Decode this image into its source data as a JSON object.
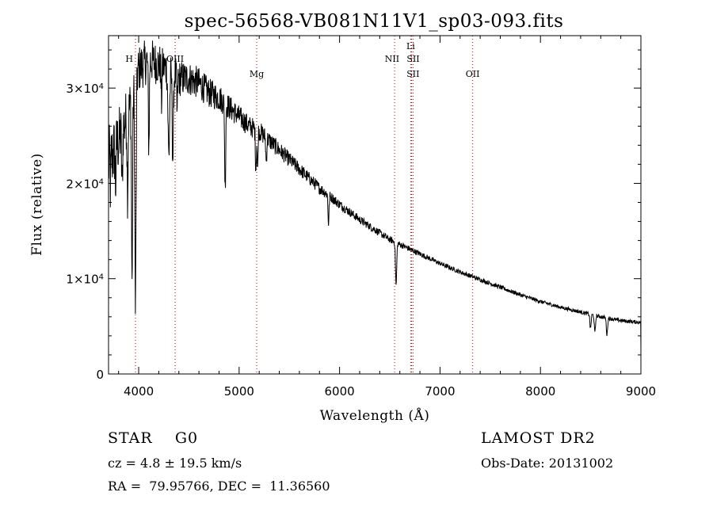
{
  "chart_data": {
    "type": "line",
    "title": "spec-56568-VB081N11V1_sp03-093.fits",
    "xlabel": "Wavelength (Å)",
    "ylabel": "Flux (relative)",
    "xlim": [
      3700,
      9000
    ],
    "ylim": [
      0,
      35500
    ],
    "x_ticks": [
      4000,
      5000,
      6000,
      7000,
      8000,
      9000
    ],
    "y_ticks": [
      {
        "value": 0,
        "mantissa": "0",
        "exp": ""
      },
      {
        "value": 10000,
        "mantissa": "1×10",
        "exp": "4"
      },
      {
        "value": 20000,
        "mantissa": "2×10",
        "exp": "4"
      },
      {
        "value": 30000,
        "mantissa": "3×10",
        "exp": "4"
      }
    ],
    "line_markers": [
      {
        "label": "H",
        "wavelength": 3968,
        "row": 2
      },
      {
        "label": "OIII",
        "wavelength": 4363,
        "row": 1
      },
      {
        "label": "Mg",
        "wavelength": 5175,
        "row": 3
      },
      {
        "label": "NII",
        "wavelength": 6548,
        "row": 2
      },
      {
        "label": "Li",
        "wavelength": 6708,
        "row": 0
      },
      {
        "label": "SII",
        "wavelength": 6717,
        "row": 1
      },
      {
        "label": "SII",
        "wavelength": 6731,
        "row": 3
      },
      {
        "label": "OII",
        "wavelength": 7325,
        "row": 3
      }
    ],
    "continuum": [
      [
        3700,
        22000
      ],
      [
        3800,
        24500
      ],
      [
        3900,
        27500
      ],
      [
        4000,
        32000
      ],
      [
        4100,
        33000
      ],
      [
        4200,
        32500
      ],
      [
        4300,
        32000
      ],
      [
        4400,
        31000
      ],
      [
        4500,
        31000
      ],
      [
        4600,
        30500
      ],
      [
        4700,
        29500
      ],
      [
        4800,
        29000
      ],
      [
        4900,
        28000
      ],
      [
        5000,
        27000
      ],
      [
        5100,
        26000
      ],
      [
        5200,
        25500
      ],
      [
        5300,
        24500
      ],
      [
        5400,
        23500
      ],
      [
        5500,
        22500
      ],
      [
        5600,
        21500
      ],
      [
        5700,
        20500
      ],
      [
        5800,
        19500
      ],
      [
        5900,
        18700
      ],
      [
        6000,
        17800
      ],
      [
        6100,
        17000
      ],
      [
        6200,
        16200
      ],
      [
        6300,
        15500
      ],
      [
        6400,
        14800
      ],
      [
        6500,
        14100
      ],
      [
        6600,
        13600
      ],
      [
        6700,
        13100
      ],
      [
        6800,
        12600
      ],
      [
        6900,
        12100
      ],
      [
        7000,
        11600
      ],
      [
        7200,
        10700
      ],
      [
        7400,
        9900
      ],
      [
        7600,
        9100
      ],
      [
        7800,
        8300
      ],
      [
        8000,
        7600
      ],
      [
        8200,
        7000
      ],
      [
        8400,
        6500
      ],
      [
        8600,
        6000
      ],
      [
        8800,
        5600
      ],
      [
        9000,
        5400
      ]
    ],
    "absorption_features": [
      [
        3720,
        3000,
        3
      ],
      [
        3770,
        4000,
        4
      ],
      [
        3835,
        6000,
        5
      ],
      [
        3890,
        8000,
        5
      ],
      [
        3934,
        20000,
        5
      ],
      [
        3968,
        24000,
        6
      ],
      [
        4101,
        9000,
        5
      ],
      [
        4227,
        4000,
        4
      ],
      [
        4300,
        9000,
        8
      ],
      [
        4340,
        9000,
        6
      ],
      [
        4383,
        4000,
        4
      ],
      [
        4861,
        9000,
        5
      ],
      [
        5167,
        4000,
        5
      ],
      [
        5184,
        4500,
        4
      ],
      [
        5270,
        2500,
        5
      ],
      [
        5890,
        3000,
        5
      ],
      [
        6563,
        4500,
        6
      ],
      [
        8498,
        1500,
        6
      ],
      [
        8542,
        1800,
        6
      ],
      [
        8662,
        1800,
        6
      ]
    ],
    "noise_amplitude": [
      [
        3700,
        4000
      ],
      [
        4000,
        2500
      ],
      [
        4500,
        1800
      ],
      [
        5000,
        1200
      ],
      [
        5500,
        800
      ],
      [
        6000,
        500
      ],
      [
        6500,
        350
      ],
      [
        7000,
        250
      ],
      [
        8000,
        200
      ],
      [
        9000,
        200
      ]
    ]
  },
  "footer": {
    "classification": "STAR    G0",
    "survey": "LAMOST DR2",
    "redshift": "cz = 4.8 ± 19.5 km/s",
    "obs_date": "Obs-Date: 20131002",
    "coordinates": "RA =  79.95766, DEC =  11.36560"
  }
}
